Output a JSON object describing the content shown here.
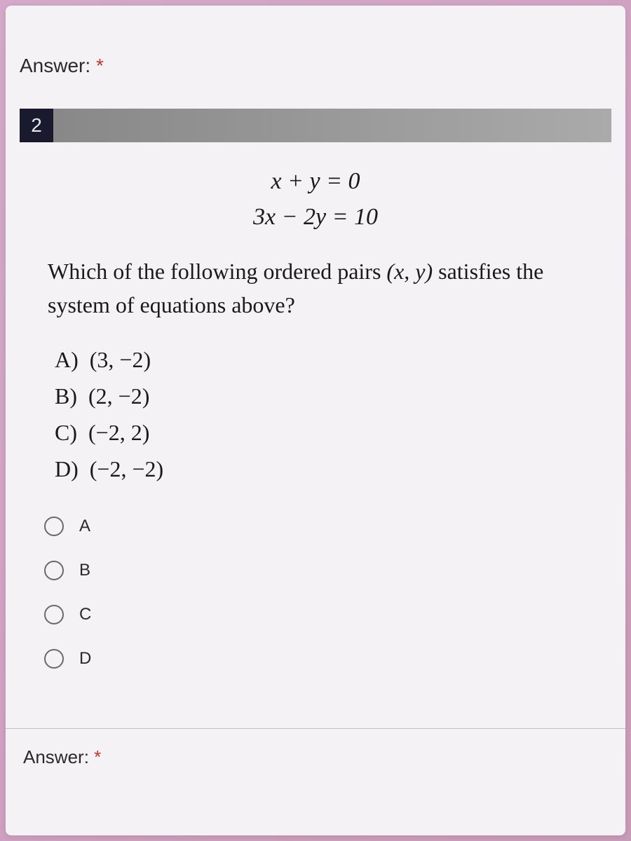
{
  "form": {
    "answer_label": "Answer:",
    "required_marker": "*"
  },
  "question": {
    "number": "2",
    "equations": {
      "line1": "x + y = 0",
      "line2": "3x − 2y = 10"
    },
    "prompt_part1": "Which of the following ordered pairs ",
    "prompt_var": "(x, y)",
    "prompt_part2": " satisfies the system of equations above?",
    "choices": [
      {
        "letter": "A)",
        "value": "(3, −2)"
      },
      {
        "letter": "B)",
        "value": "(2, −2)"
      },
      {
        "letter": "C)",
        "value": "(−2, 2)"
      },
      {
        "letter": "D)",
        "value": "(−2, −2)"
      }
    ]
  },
  "radio_options": [
    {
      "label": "A"
    },
    {
      "label": "B"
    },
    {
      "label": "C"
    },
    {
      "label": "D"
    }
  ],
  "colors": {
    "background_gradient_start": "#d4a8c8",
    "background_gradient_end": "#c89bb8",
    "form_background": "#f5f2f5",
    "question_number_bg": "#1a1a2e",
    "question_bar_fill": "#999999",
    "text_color": "#2a2a2a",
    "radio_border": "#6a6a6a",
    "required_color": "#c0392b"
  },
  "typography": {
    "label_fontsize": 28,
    "question_number_fontsize": 28,
    "equation_fontsize": 34,
    "question_text_fontsize": 32,
    "choice_fontsize": 32,
    "radio_label_fontsize": 24
  }
}
